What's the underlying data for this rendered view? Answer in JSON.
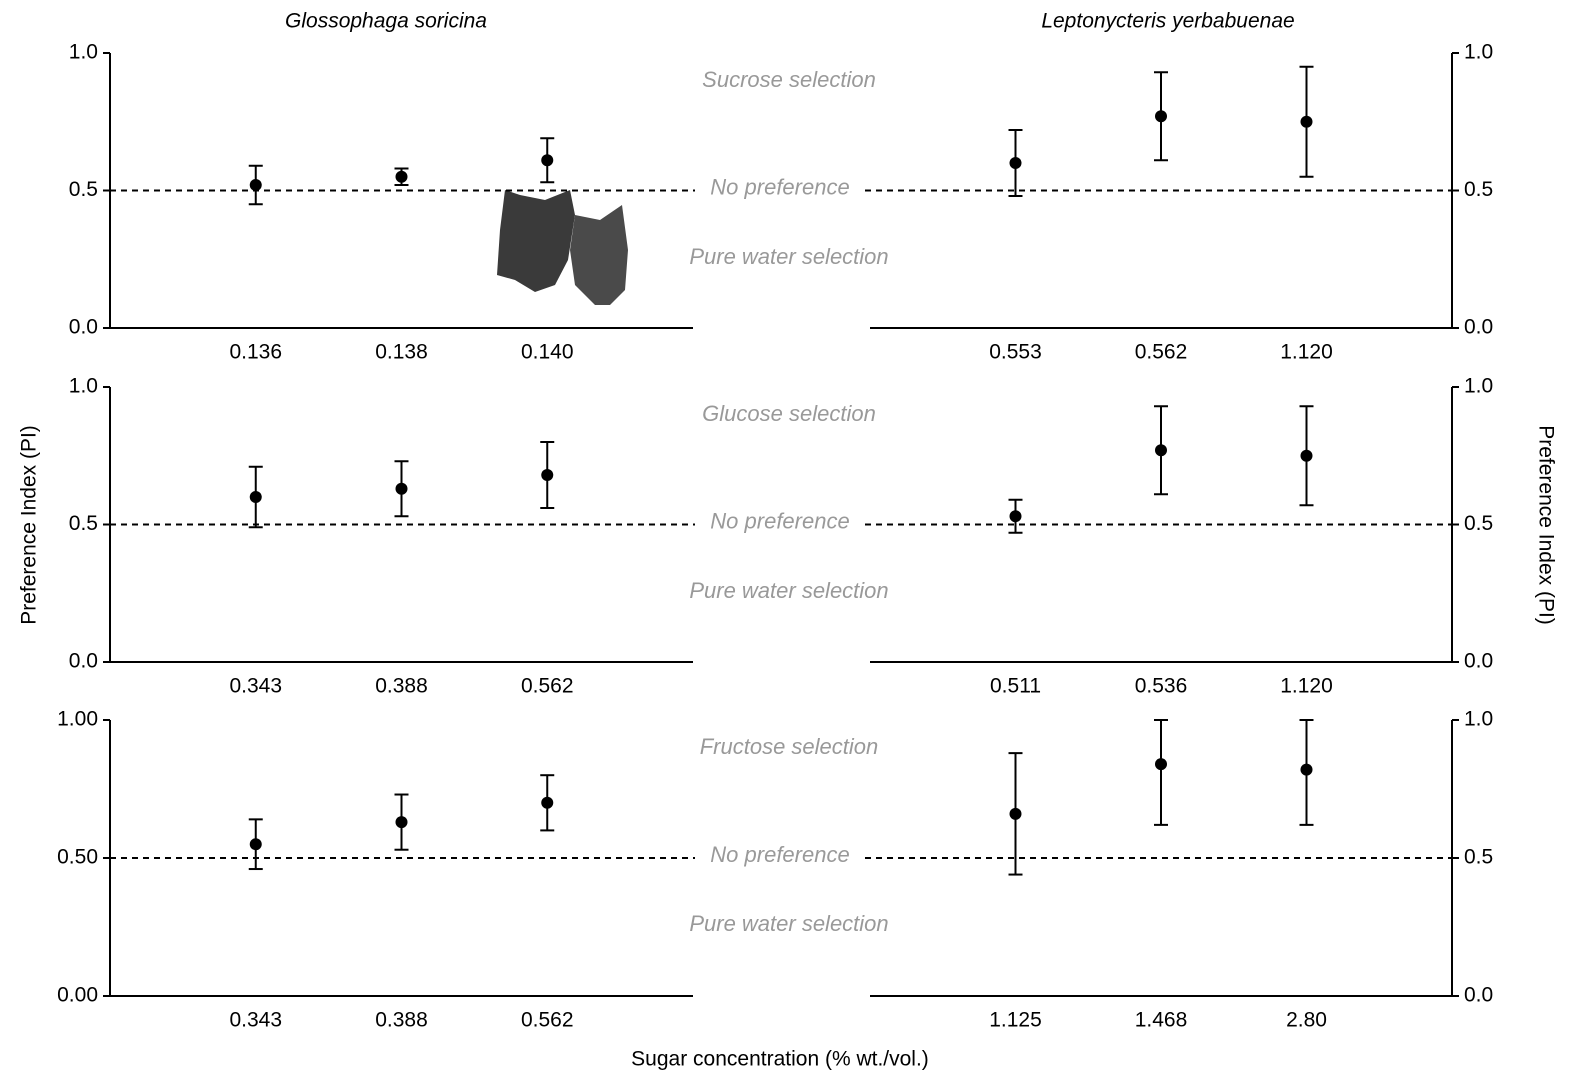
{
  "figure": {
    "ylabel": "Preference Index (PI)",
    "xlabel": "Sugar concentration (% wt./vol.)",
    "rows": [
      {
        "top": "Sucrose selection",
        "middle": "No preference",
        "bottom": "Pure water selection"
      },
      {
        "top": "Glucose selection",
        "middle": "No preference",
        "bottom": "Pure water selection"
      },
      {
        "top": "Fructose selection",
        "middle": "No preference",
        "bottom": "Pure water selection"
      }
    ]
  },
  "chart_data": [
    {
      "type": "errorbar",
      "title": "Glossophaga soricina",
      "yaxis": "left",
      "color": "#000000",
      "categories": [
        "0.136",
        "0.138",
        "0.140"
      ],
      "values": [
        0.52,
        0.55,
        0.61
      ],
      "error_low": [
        0.07,
        0.03,
        0.08
      ],
      "error_high": [
        0.07,
        0.03,
        0.08
      ],
      "ylim": [
        0,
        1
      ],
      "yticks": [
        {
          "value": 0,
          "label": "0.0"
        },
        {
          "value": 0.5,
          "label": "0.5"
        },
        {
          "value": 1,
          "label": "1.0"
        }
      ],
      "reference_line": 0.5
    },
    {
      "type": "errorbar",
      "title": "Leptonycteris yerbabuenae",
      "yaxis": "right",
      "color": "#000000",
      "categories": [
        "0.553",
        "0.562",
        "1.120"
      ],
      "values": [
        0.6,
        0.77,
        0.75
      ],
      "error_low": [
        0.12,
        0.16,
        0.2
      ],
      "error_high": [
        0.12,
        0.16,
        0.2
      ],
      "ylim": [
        0,
        1
      ],
      "yticks": [
        {
          "value": 0,
          "label": "0.0"
        },
        {
          "value": 0.5,
          "label": "0.5"
        },
        {
          "value": 1,
          "label": "1.0"
        }
      ],
      "reference_line": 0.5
    },
    {
      "type": "errorbar",
      "yaxis": "left",
      "color": "#000000",
      "categories": [
        "0.343",
        "0.388",
        "0.562"
      ],
      "values": [
        0.6,
        0.63,
        0.68
      ],
      "error_low": [
        0.11,
        0.1,
        0.12
      ],
      "error_high": [
        0.11,
        0.1,
        0.12
      ],
      "ylim": [
        0,
        1
      ],
      "yticks": [
        {
          "value": 0,
          "label": "0.0"
        },
        {
          "value": 0.5,
          "label": "0.5"
        },
        {
          "value": 1,
          "label": "1.0"
        }
      ],
      "reference_line": 0.5
    },
    {
      "type": "errorbar",
      "yaxis": "right",
      "color": "#000000",
      "categories": [
        "0.511",
        "0.536",
        "1.120"
      ],
      "values": [
        0.53,
        0.77,
        0.75
      ],
      "error_low": [
        0.06,
        0.16,
        0.18
      ],
      "error_high": [
        0.06,
        0.16,
        0.18
      ],
      "ylim": [
        0,
        1
      ],
      "yticks": [
        {
          "value": 0,
          "label": "0.0"
        },
        {
          "value": 0.5,
          "label": "0.5"
        },
        {
          "value": 1,
          "label": "1.0"
        }
      ],
      "reference_line": 0.5
    },
    {
      "type": "errorbar",
      "yaxis": "left",
      "color": "#000000",
      "categories": [
        "0.343",
        "0.388",
        "0.562"
      ],
      "values": [
        0.55,
        0.63,
        0.7
      ],
      "error_low": [
        0.09,
        0.1,
        0.1
      ],
      "error_high": [
        0.09,
        0.1,
        0.1
      ],
      "ylim": [
        0,
        1
      ],
      "yticks": [
        {
          "value": 0,
          "label": "0.00"
        },
        {
          "value": 0.5,
          "label": "0.50"
        },
        {
          "value": 1,
          "label": "1.00"
        }
      ],
      "reference_line": 0.5
    },
    {
      "type": "errorbar",
      "yaxis": "right",
      "color": "#000000",
      "categories": [
        "1.125",
        "1.468",
        "2.80"
      ],
      "values": [
        0.66,
        0.84,
        0.82
      ],
      "error_low": [
        0.22,
        0.22,
        0.2
      ],
      "error_high": [
        0.22,
        0.16,
        0.18
      ],
      "ylim": [
        0,
        1
      ],
      "yticks": [
        {
          "value": 0,
          "label": "0.0"
        },
        {
          "value": 0.5,
          "label": "0.5"
        },
        {
          "value": 1,
          "label": "1.0"
        }
      ],
      "reference_line": 0.5
    }
  ]
}
